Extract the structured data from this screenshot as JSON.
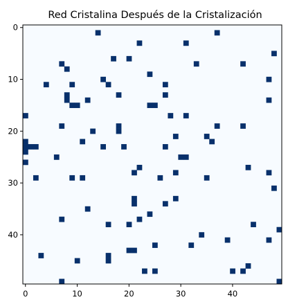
{
  "chart_data": {
    "type": "heatmap",
    "title": "Red Cristalina Después de la Cristalización",
    "xlabel": "",
    "ylabel": "",
    "grid_size": 50,
    "xlim": [
      -0.5,
      49.5
    ],
    "ylim": [
      49.5,
      -0.5
    ],
    "x_ticks": [
      0,
      10,
      20,
      30,
      40
    ],
    "y_ticks": [
      0,
      10,
      20,
      30,
      40
    ],
    "grid": false,
    "colormap": "Blues",
    "colors": {
      "empty": "#f7fbff",
      "filled": "#08306b"
    },
    "filled_cells": [
      [
        1,
        14
      ],
      [
        1,
        37
      ],
      [
        3,
        22
      ],
      [
        3,
        31
      ],
      [
        5,
        48
      ],
      [
        6,
        17
      ],
      [
        6,
        20
      ],
      [
        7,
        7
      ],
      [
        7,
        33
      ],
      [
        7,
        42
      ],
      [
        8,
        8
      ],
      [
        9,
        24
      ],
      [
        10,
        15
      ],
      [
        10,
        47
      ],
      [
        11,
        4
      ],
      [
        11,
        9
      ],
      [
        11,
        16
      ],
      [
        11,
        27
      ],
      [
        13,
        8
      ],
      [
        13,
        18
      ],
      [
        13,
        27
      ],
      [
        14,
        8
      ],
      [
        14,
        12
      ],
      [
        14,
        47
      ],
      [
        15,
        9
      ],
      [
        15,
        10
      ],
      [
        15,
        24
      ],
      [
        15,
        25
      ],
      [
        17,
        0
      ],
      [
        17,
        28
      ],
      [
        17,
        31
      ],
      [
        19,
        7
      ],
      [
        19,
        18
      ],
      [
        19,
        37
      ],
      [
        19,
        42
      ],
      [
        20,
        18
      ],
      [
        20,
        13
      ],
      [
        21,
        29
      ],
      [
        21,
        35
      ],
      [
        22,
        0
      ],
      [
        22,
        11
      ],
      [
        22,
        36
      ],
      [
        23,
        0
      ],
      [
        23,
        1
      ],
      [
        23,
        2
      ],
      [
        23,
        15
      ],
      [
        23,
        19
      ],
      [
        23,
        27
      ],
      [
        24,
        0
      ],
      [
        25,
        6
      ],
      [
        25,
        30
      ],
      [
        25,
        31
      ],
      [
        26,
        0
      ],
      [
        27,
        22
      ],
      [
        27,
        43
      ],
      [
        28,
        21
      ],
      [
        28,
        29
      ],
      [
        28,
        47
      ],
      [
        29,
        2
      ],
      [
        29,
        9
      ],
      [
        29,
        11
      ],
      [
        29,
        26
      ],
      [
        29,
        35
      ],
      [
        31,
        48
      ],
      [
        33,
        21
      ],
      [
        33,
        29
      ],
      [
        34,
        21
      ],
      [
        34,
        27
      ],
      [
        35,
        12
      ],
      [
        36,
        24
      ],
      [
        37,
        7
      ],
      [
        37,
        22
      ],
      [
        38,
        16
      ],
      [
        38,
        20
      ],
      [
        38,
        44
      ],
      [
        39,
        49
      ],
      [
        40,
        34
      ],
      [
        41,
        39
      ],
      [
        41,
        47
      ],
      [
        42,
        25
      ],
      [
        42,
        32
      ],
      [
        43,
        20
      ],
      [
        43,
        21
      ],
      [
        44,
        3
      ],
      [
        44,
        16
      ],
      [
        45,
        10
      ],
      [
        45,
        16
      ],
      [
        46,
        43
      ],
      [
        47,
        23
      ],
      [
        47,
        25
      ],
      [
        47,
        40
      ],
      [
        47,
        42
      ],
      [
        49,
        7
      ],
      [
        49,
        49
      ]
    ]
  }
}
